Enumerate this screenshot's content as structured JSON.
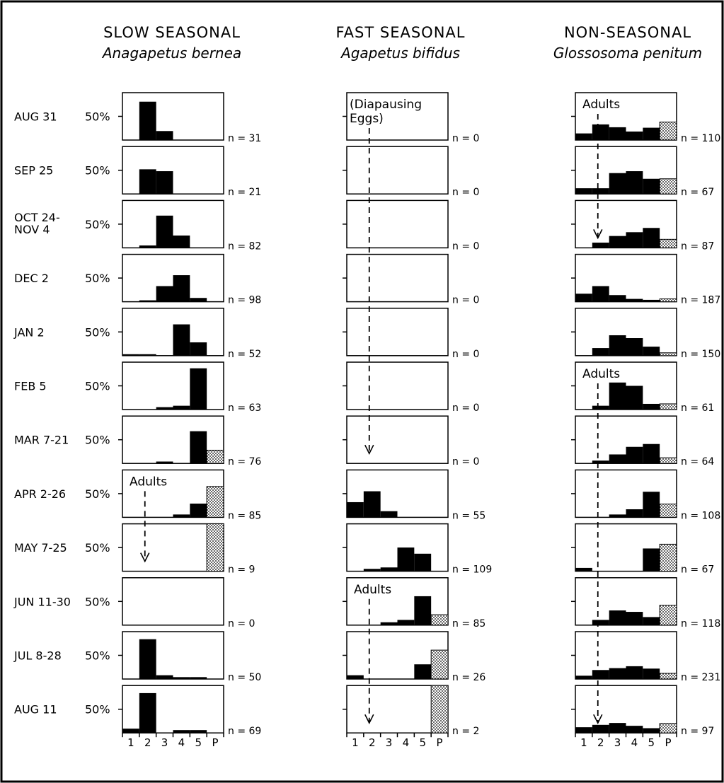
{
  "figure": {
    "columns": [
      {
        "heading": "SLOW SEASONAL",
        "species": "Anagapetus bernea"
      },
      {
        "heading": "FAST SEASONAL",
        "species": "Agapetus bifidus"
      },
      {
        "heading": "NON-SEASONAL",
        "species": "Glossosoma penitum"
      }
    ],
    "rows": [
      {
        "lines": [
          "AUG 31"
        ]
      },
      {
        "lines": [
          "SEP 25"
        ]
      },
      {
        "lines": [
          "OCT 24-",
          "NOV 4"
        ]
      },
      {
        "lines": [
          "DEC 2"
        ]
      },
      {
        "lines": [
          "JAN 2"
        ]
      },
      {
        "lines": [
          "FEB 5"
        ]
      },
      {
        "lines": [
          "MAR 7-21"
        ]
      },
      {
        "lines": [
          "APR 2-26"
        ]
      },
      {
        "lines": [
          "MAY 7-25"
        ]
      },
      {
        "lines": [
          "JUN 11-30"
        ]
      },
      {
        "lines": [
          "JUL 8-28"
        ]
      },
      {
        "lines": [
          "AUG 11"
        ]
      }
    ],
    "percent_label": "50%",
    "categories": [
      "1",
      "2",
      "3",
      "4",
      "5",
      "P"
    ]
  },
  "colors": {
    "ink": "#000000",
    "background": "#ffffff"
  },
  "chart_data": [
    {
      "type": "bar",
      "species": "Anagapetus bernea",
      "column_heading": "SLOW SEASONAL",
      "categories": [
        "1",
        "2",
        "3",
        "4",
        "5",
        "P"
      ],
      "pattern_note": "category P drawn stippled",
      "ylim": [
        0,
        100
      ],
      "ytick": 50,
      "panels": [
        {
          "date": "AUG 31",
          "n_label": "n = 31",
          "values": [
            0,
            81,
            19,
            0,
            0,
            0
          ]
        },
        {
          "date": "SEP 25",
          "n_label": "n = 21",
          "values": [
            0,
            52,
            48,
            0,
            0,
            0
          ]
        },
        {
          "date": "OCT 24-NOV 4",
          "n_label": "n = 82",
          "values": [
            0,
            5,
            68,
            26,
            0,
            0
          ]
        },
        {
          "date": "DEC 2",
          "n_label": "n = 98",
          "values": [
            0,
            3,
            33,
            56,
            8,
            0
          ]
        },
        {
          "date": "JAN 2",
          "n_label": "n = 52",
          "values": [
            3,
            3,
            0,
            66,
            28,
            0
          ]
        },
        {
          "date": "FEB 5",
          "n_label": "n = 63",
          "values": [
            0,
            0,
            5,
            8,
            87,
            0
          ]
        },
        {
          "date": "MAR 7-21",
          "n_label": "n = 76",
          "values": [
            0,
            0,
            4,
            0,
            68,
            28
          ]
        },
        {
          "date": "APR 2-26",
          "n_label": "n = 85",
          "values": [
            0,
            0,
            0,
            6,
            29,
            65
          ]
        },
        {
          "date": "MAY 7-25",
          "n_label": "n = 9",
          "values": [
            0,
            0,
            0,
            0,
            0,
            100
          ],
          "annotation": "Adults"
        },
        {
          "date": "JUN 11-30",
          "n_label": "n = 0",
          "values": [
            0,
            0,
            0,
            0,
            0,
            0
          ]
        },
        {
          "date": "JUL 8-28",
          "n_label": "n = 50",
          "values": [
            0,
            84,
            8,
            4,
            4,
            0
          ]
        },
        {
          "date": "AUG 11",
          "n_label": "n = 69",
          "values": [
            9,
            84,
            0,
            6,
            6,
            0
          ]
        }
      ],
      "annotations": [
        {
          "panel": "APR 2-26",
          "text": "Adults",
          "arrow_to_panel": "MAY 7-25",
          "at_category": "2"
        }
      ]
    },
    {
      "type": "bar",
      "species": "Agapetus bifidus",
      "column_heading": "FAST SEASONAL",
      "categories": [
        "1",
        "2",
        "3",
        "4",
        "5",
        "P"
      ],
      "ylim": [
        0,
        100
      ],
      "ytick": 50,
      "panels": [
        {
          "date": "AUG 31",
          "n_label": "n = 0",
          "values": [
            0,
            0,
            0,
            0,
            0,
            0
          ]
        },
        {
          "date": "SEP 25",
          "n_label": "n = 0",
          "values": [
            0,
            0,
            0,
            0,
            0,
            0
          ]
        },
        {
          "date": "OCT 24-NOV 4",
          "n_label": "n = 0",
          "values": [
            0,
            0,
            0,
            0,
            0,
            0
          ]
        },
        {
          "date": "DEC 2",
          "n_label": "n = 0",
          "values": [
            0,
            0,
            0,
            0,
            0,
            0
          ]
        },
        {
          "date": "JAN 2",
          "n_label": "n = 0",
          "values": [
            0,
            0,
            0,
            0,
            0,
            0
          ]
        },
        {
          "date": "FEB 5",
          "n_label": "n = 0",
          "values": [
            0,
            0,
            0,
            0,
            0,
            0
          ]
        },
        {
          "date": "MAR 7-21",
          "n_label": "n = 0",
          "values": [
            0,
            0,
            0,
            0,
            0,
            0
          ]
        },
        {
          "date": "APR 2-26",
          "n_label": "n = 55",
          "values": [
            32,
            55,
            13,
            0,
            0,
            0
          ]
        },
        {
          "date": "MAY 7-25",
          "n_label": "n = 109",
          "values": [
            0,
            5,
            8,
            50,
            37,
            0
          ]
        },
        {
          "date": "JUN 11-30",
          "n_label": "n = 85",
          "values": [
            0,
            0,
            6,
            11,
            61,
            22
          ]
        },
        {
          "date": "JUL 8-28",
          "n_label": "n = 26",
          "values": [
            8,
            0,
            0,
            0,
            31,
            61
          ]
        },
        {
          "date": "AUG 11",
          "n_label": "n = 2",
          "values": [
            0,
            0,
            0,
            0,
            0,
            100
          ]
        }
      ],
      "annotations": [
        {
          "panel": "AUG 31",
          "text_lines": [
            "(Diapausing",
            "Eggs)"
          ],
          "arrow_to_panel": "MAR 7-21",
          "at_category": "2"
        },
        {
          "panel": "JUN 11-30",
          "text": "Adults",
          "arrow_to_panel": "AUG 11",
          "at_category": "2"
        }
      ]
    },
    {
      "type": "bar",
      "species": "Glossosoma penitum",
      "column_heading": "NON-SEASONAL",
      "categories": [
        "1",
        "2",
        "3",
        "4",
        "5",
        "P"
      ],
      "ylim": [
        0,
        100
      ],
      "ytick": 50,
      "panels": [
        {
          "date": "AUG 31",
          "n_label": "n = 110",
          "values": [
            14,
            33,
            27,
            18,
            26,
            38
          ]
        },
        {
          "date": "SEP 25",
          "n_label": "n = 67",
          "values": [
            12,
            12,
            44,
            48,
            32,
            32
          ]
        },
        {
          "date": "OCT 24-NOV 4",
          "n_label": "n = 87",
          "values": [
            0,
            11,
            25,
            33,
            42,
            18
          ]
        },
        {
          "date": "DEC 2",
          "n_label": "n = 187",
          "values": [
            17,
            33,
            14,
            6,
            4,
            6
          ]
        },
        {
          "date": "JAN 2",
          "n_label": "n = 150",
          "values": [
            0,
            16,
            43,
            37,
            19,
            6
          ]
        },
        {
          "date": "FEB 5",
          "n_label": "n = 61",
          "values": [
            0,
            8,
            57,
            50,
            12,
            12
          ]
        },
        {
          "date": "MAR 7-21",
          "n_label": "n = 64",
          "values": [
            0,
            6,
            19,
            35,
            41,
            12
          ]
        },
        {
          "date": "APR 2-26",
          "n_label": "n = 108",
          "values": [
            0,
            0,
            6,
            17,
            54,
            28
          ]
        },
        {
          "date": "MAY 7-25",
          "n_label": "n = 67",
          "values": [
            7,
            0,
            0,
            0,
            48,
            57
          ]
        },
        {
          "date": "JUN 11-30",
          "n_label": "n = 118",
          "values": [
            0,
            11,
            31,
            28,
            17,
            42
          ]
        },
        {
          "date": "JUL 8-28",
          "n_label": "n = 231",
          "values": [
            7,
            19,
            23,
            27,
            22,
            12
          ]
        },
        {
          "date": "AUG 11",
          "n_label": "n = 97",
          "values": [
            12,
            17,
            21,
            15,
            10,
            20
          ]
        }
      ],
      "annotations": [
        {
          "panel": "AUG 31",
          "text": "Adults",
          "arrow_to_panel": "OCT 24-NOV 4",
          "at_category": "2"
        },
        {
          "panel": "FEB 5",
          "text": "Adults",
          "arrow_to_panel": "AUG 11",
          "at_category": "2"
        }
      ]
    }
  ]
}
